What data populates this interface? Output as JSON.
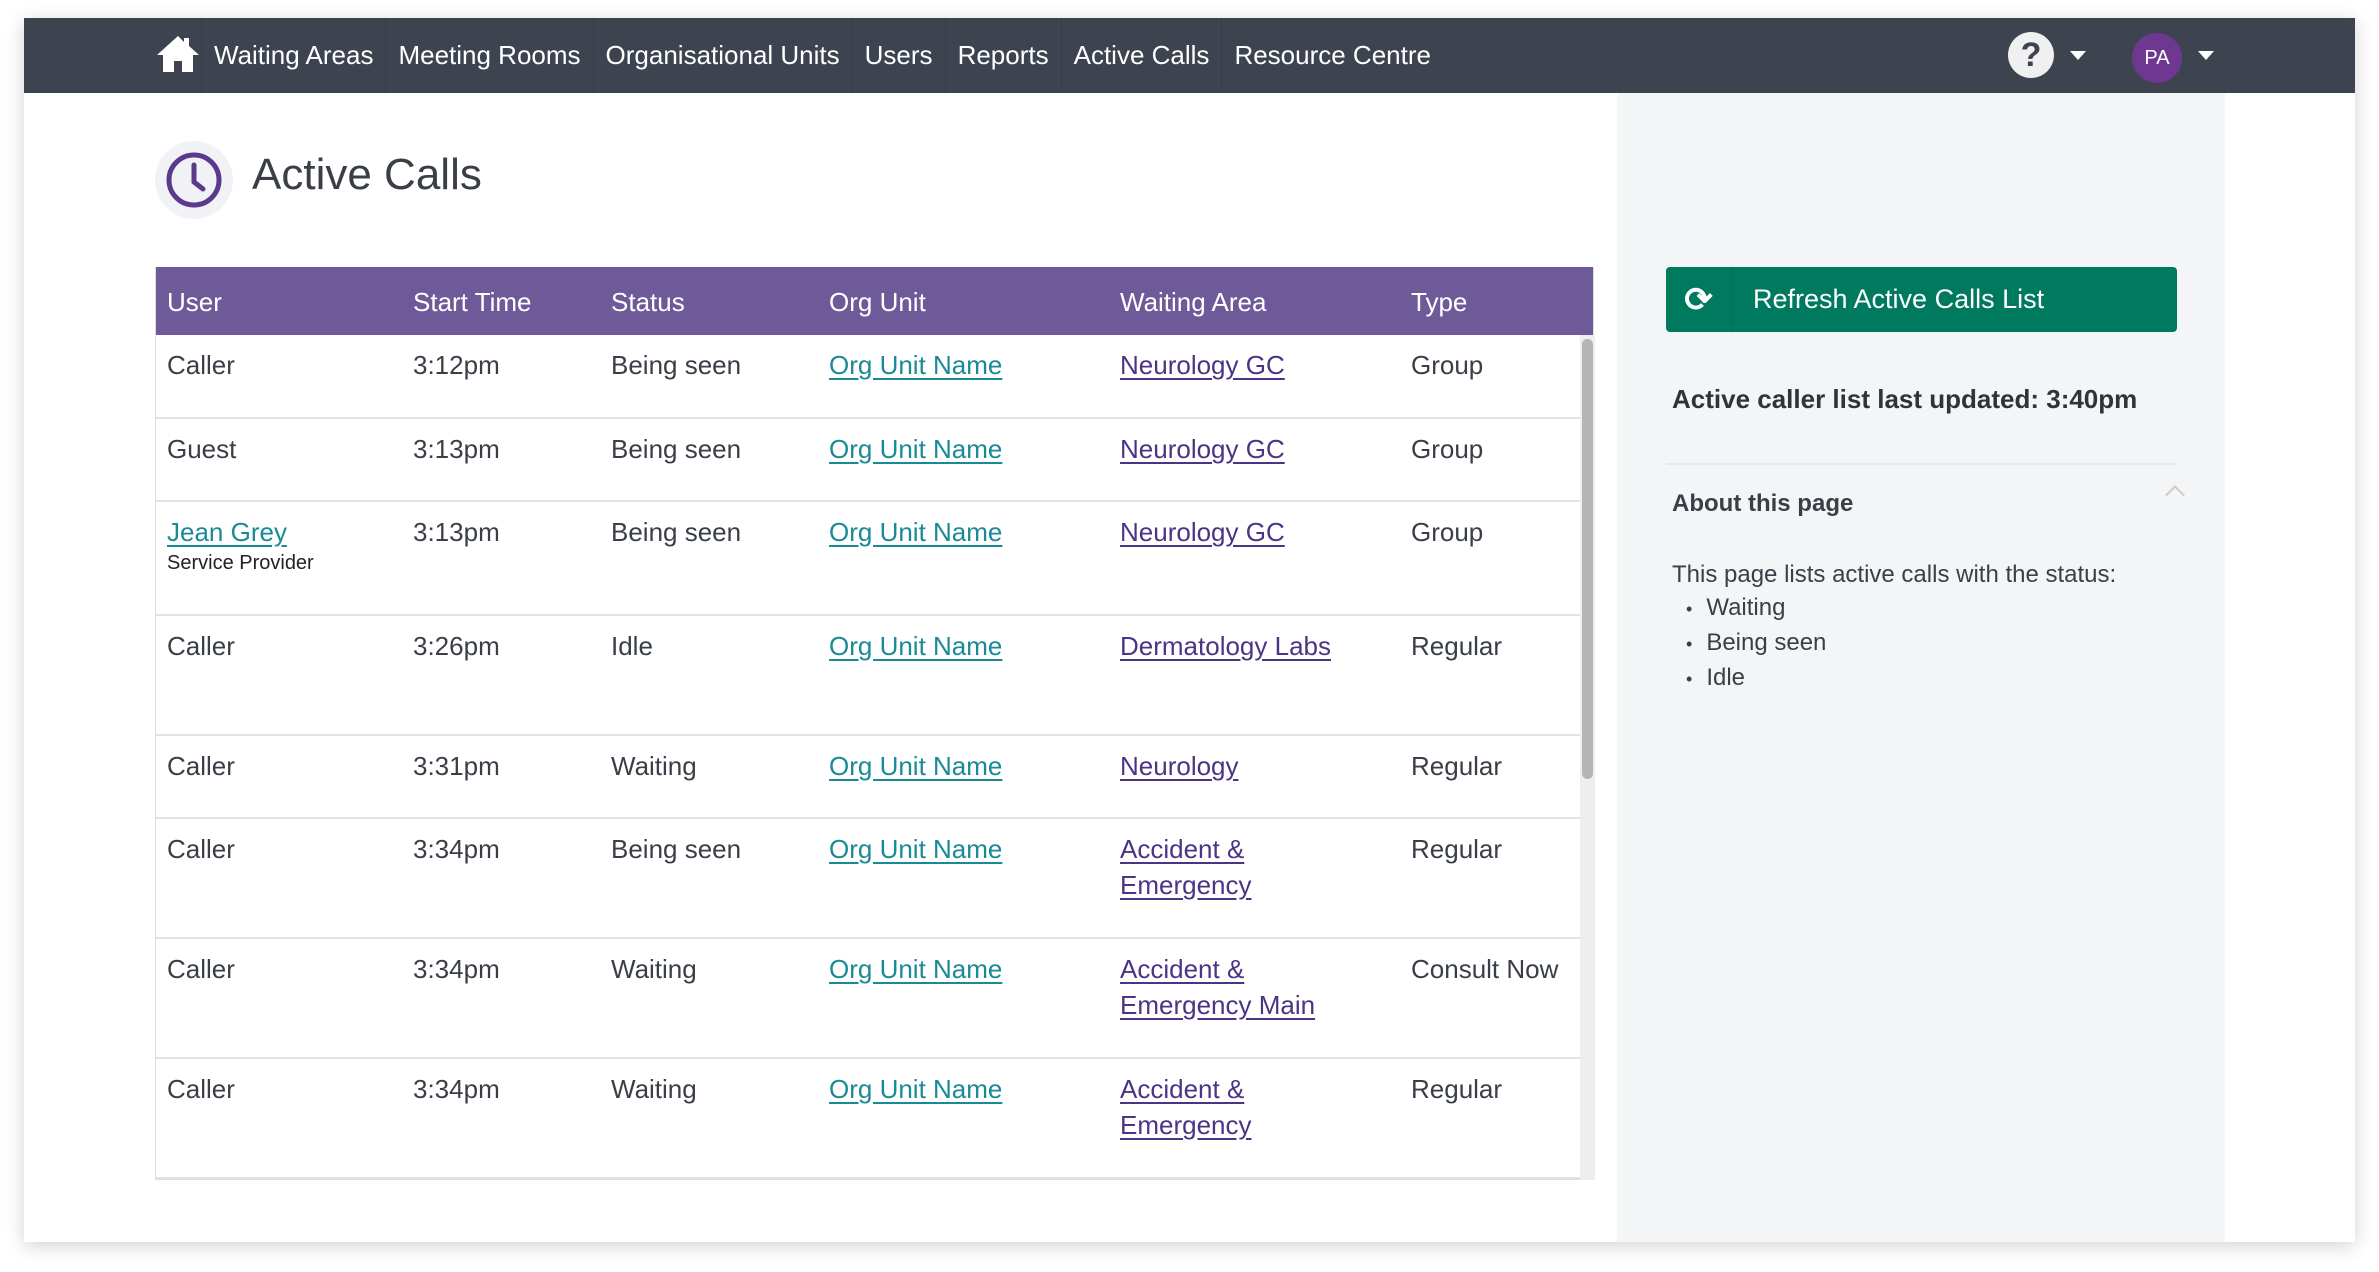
{
  "nav": {
    "items": [
      "Waiting Areas",
      "Meeting Rooms",
      "Organisational Units",
      "Users",
      "Reports",
      "Active Calls",
      "Resource Centre"
    ],
    "help_label": "?",
    "avatar_initials": "PA"
  },
  "page": {
    "title": "Active Calls"
  },
  "colors": {
    "nav_bg": "#3d4450",
    "table_header": "#6e5a98",
    "button": "#007a5e",
    "org_link": "#1a8a96",
    "area_link": "#4b3484",
    "avatar": "#6e3891"
  },
  "table": {
    "headers": [
      "User",
      "Start Time",
      "Status",
      "Org Unit",
      "Waiting Area",
      "Type"
    ],
    "rows": [
      {
        "user": "Caller",
        "start": "3:12pm",
        "status": "Being seen",
        "org": "Org Unit Name",
        "area": "Neurology GC",
        "type": "Group"
      },
      {
        "user": "Guest",
        "start": "3:13pm",
        "status": "Being seen",
        "org": "Org Unit Name",
        "area": "Neurology GC",
        "type": "Group"
      },
      {
        "user": "Jean Grey",
        "user_role": "Service Provider",
        "start": "3:13pm",
        "status": "Being seen",
        "org": "Org Unit Name",
        "area": "Neurology GC",
        "type": "Group"
      },
      {
        "user": "Caller",
        "start": "3:26pm",
        "status": "Idle",
        "org": "Org Unit Name",
        "area": "Dermatology Labs",
        "type": "Regular"
      },
      {
        "user": "Caller",
        "start": "3:31pm",
        "status": "Waiting",
        "org": "Org Unit Name",
        "area": "Neurology",
        "type": "Regular"
      },
      {
        "user": "Caller",
        "start": "3:34pm",
        "status": "Being seen",
        "org": "Org Unit Name",
        "area": "Accident & Emergency",
        "type": "Regular"
      },
      {
        "user": "Caller",
        "start": "3:34pm",
        "status": "Waiting",
        "org": "Org Unit Name",
        "area": "Accident & Emergency Main",
        "type": "Consult Now"
      },
      {
        "user": "Caller",
        "start": "3:34pm",
        "status": "Waiting",
        "org": "Org Unit Name",
        "area": "Accident & Emergency",
        "type": "Regular"
      }
    ]
  },
  "sidebar": {
    "refresh_label": "Refresh Active Calls List",
    "updated_text": "Active caller list last updated: 3:40pm",
    "about_title": "About this page",
    "about_text": "This page lists active calls with the status:",
    "statuses": [
      "Waiting",
      "Being seen",
      "Idle"
    ]
  }
}
